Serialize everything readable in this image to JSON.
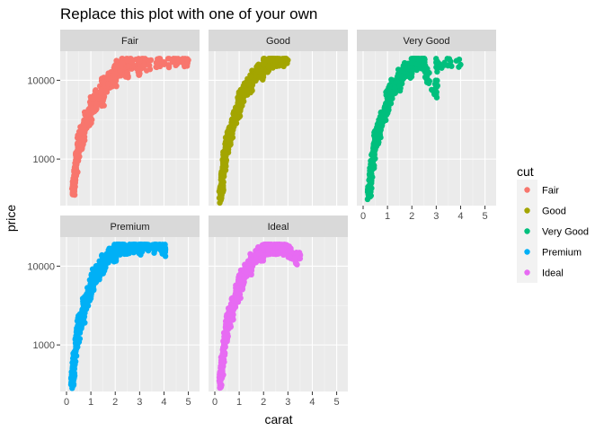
{
  "chart_data": {
    "type": "scatter",
    "title": "Replace this plot with one of your own",
    "xlabel": "carat",
    "ylabel": "price",
    "xlim": [
      0,
      5.2
    ],
    "x_ticks": [
      0,
      1,
      2,
      3,
      4,
      5
    ],
    "ylim": [
      300,
      20000
    ],
    "y_scale": "log10",
    "y_ticks": [
      1000,
      10000
    ],
    "grid": true,
    "legend": {
      "title": "cut",
      "placement": "right",
      "entries": [
        "Fair",
        "Good",
        "Very Good",
        "Premium",
        "Ideal"
      ]
    },
    "colors": {
      "Fair": "#F8766D",
      "Good": "#A3A500",
      "Very Good": "#00BF7D",
      "Premium": "#00B0F6",
      "Ideal": "#E76BF3"
    },
    "facets": [
      {
        "label": "Fair",
        "points": [
          [
            0.25,
            360
          ],
          [
            0.3,
            420
          ],
          [
            0.3,
            520
          ],
          [
            0.35,
            640
          ],
          [
            0.4,
            700
          ],
          [
            0.4,
            900
          ],
          [
            0.45,
            1100
          ],
          [
            0.5,
            1300
          ],
          [
            0.5,
            1600
          ],
          [
            0.55,
            1900
          ],
          [
            0.6,
            1500
          ],
          [
            0.6,
            2200
          ],
          [
            0.7,
            1800
          ],
          [
            0.7,
            2500
          ],
          [
            0.8,
            2700
          ],
          [
            0.8,
            3300
          ],
          [
            0.9,
            3000
          ],
          [
            0.9,
            3800
          ],
          [
            1.0,
            3200
          ],
          [
            1.0,
            4500
          ],
          [
            1.0,
            5200
          ],
          [
            1.1,
            4400
          ],
          [
            1.1,
            5800
          ],
          [
            1.2,
            5000
          ],
          [
            1.2,
            6400
          ],
          [
            1.3,
            6000
          ],
          [
            1.4,
            7000
          ],
          [
            1.5,
            5500
          ],
          [
            1.5,
            7800
          ],
          [
            1.5,
            9500
          ],
          [
            1.6,
            8500
          ],
          [
            1.7,
            9000
          ],
          [
            1.8,
            10500
          ],
          [
            2.0,
            9000
          ],
          [
            2.0,
            12000
          ],
          [
            2.0,
            15000
          ],
          [
            2.2,
            13000
          ],
          [
            2.3,
            16500
          ],
          [
            2.5,
            12500
          ],
          [
            2.5,
            17800
          ],
          [
            2.7,
            17000
          ],
          [
            3.0,
            14000
          ],
          [
            3.0,
            17500
          ],
          [
            3.4,
            15500
          ],
          [
            4.0,
            17000
          ],
          [
            4.5,
            18500
          ],
          [
            5.0,
            18000
          ]
        ]
      },
      {
        "label": "Good",
        "points": [
          [
            0.23,
            330
          ],
          [
            0.25,
            380
          ],
          [
            0.3,
            450
          ],
          [
            0.3,
            560
          ],
          [
            0.32,
            650
          ],
          [
            0.35,
            760
          ],
          [
            0.4,
            900
          ],
          [
            0.4,
            1100
          ],
          [
            0.45,
            1200
          ],
          [
            0.5,
            1400
          ],
          [
            0.5,
            1700
          ],
          [
            0.55,
            1900
          ],
          [
            0.6,
            1700
          ],
          [
            0.6,
            2300
          ],
          [
            0.7,
            2200
          ],
          [
            0.7,
            2900
          ],
          [
            0.75,
            3100
          ],
          [
            0.8,
            3300
          ],
          [
            0.9,
            3600
          ],
          [
            0.9,
            4300
          ],
          [
            1.0,
            4000
          ],
          [
            1.0,
            5000
          ],
          [
            1.0,
            6000
          ],
          [
            1.1,
            5500
          ],
          [
            1.1,
            7000
          ],
          [
            1.2,
            6500
          ],
          [
            1.2,
            8000
          ],
          [
            1.3,
            7500
          ],
          [
            1.4,
            9000
          ],
          [
            1.5,
            8000
          ],
          [
            1.5,
            11000
          ],
          [
            1.6,
            10000
          ],
          [
            1.7,
            12500
          ],
          [
            1.8,
            13000
          ],
          [
            2.0,
            12000
          ],
          [
            2.0,
            16000
          ],
          [
            2.1,
            17500
          ],
          [
            2.2,
            15000
          ],
          [
            2.3,
            18000
          ],
          [
            2.5,
            17000
          ],
          [
            2.6,
            18200
          ],
          [
            3.0,
            18000
          ]
        ]
      },
      {
        "label": "Very Good",
        "points": [
          [
            0.23,
            330
          ],
          [
            0.25,
            380
          ],
          [
            0.3,
            460
          ],
          [
            0.3,
            580
          ],
          [
            0.32,
            680
          ],
          [
            0.35,
            760
          ],
          [
            0.4,
            900
          ],
          [
            0.4,
            1100
          ],
          [
            0.45,
            1250
          ],
          [
            0.5,
            1500
          ],
          [
            0.5,
            1800
          ],
          [
            0.55,
            2000
          ],
          [
            0.6,
            1800
          ],
          [
            0.6,
            2400
          ],
          [
            0.7,
            2300
          ],
          [
            0.7,
            3000
          ],
          [
            0.75,
            3200
          ],
          [
            0.8,
            3400
          ],
          [
            0.9,
            3700
          ],
          [
            0.9,
            4500
          ],
          [
            1.0,
            4200
          ],
          [
            1.0,
            5200
          ],
          [
            1.0,
            6200
          ],
          [
            1.1,
            5800
          ],
          [
            1.1,
            7200
          ],
          [
            1.2,
            6800
          ],
          [
            1.2,
            8300
          ],
          [
            1.3,
            8000
          ],
          [
            1.4,
            9500
          ],
          [
            1.5,
            8500
          ],
          [
            1.5,
            11500
          ],
          [
            1.6,
            10500
          ],
          [
            1.7,
            13000
          ],
          [
            1.8,
            14000
          ],
          [
            2.0,
            13000
          ],
          [
            2.0,
            17000
          ],
          [
            2.1,
            18000
          ],
          [
            2.2,
            16000
          ],
          [
            2.3,
            18300
          ],
          [
            2.5,
            15500
          ],
          [
            2.5,
            17500
          ],
          [
            2.6,
            12000
          ],
          [
            3.0,
            6500
          ],
          [
            3.0,
            17000
          ],
          [
            4.0,
            15800
          ]
        ]
      },
      {
        "label": "Premium",
        "points": [
          [
            0.2,
            340
          ],
          [
            0.23,
            360
          ],
          [
            0.25,
            390
          ],
          [
            0.3,
            460
          ],
          [
            0.3,
            600
          ],
          [
            0.32,
            700
          ],
          [
            0.35,
            780
          ],
          [
            0.4,
            920
          ],
          [
            0.4,
            1150
          ],
          [
            0.45,
            1250
          ],
          [
            0.5,
            1500
          ],
          [
            0.5,
            1850
          ],
          [
            0.55,
            2050
          ],
          [
            0.6,
            1800
          ],
          [
            0.6,
            2500
          ],
          [
            0.7,
            2300
          ],
          [
            0.7,
            3100
          ],
          [
            0.75,
            3300
          ],
          [
            0.8,
            3500
          ],
          [
            0.9,
            3800
          ],
          [
            0.9,
            4700
          ],
          [
            1.0,
            4300
          ],
          [
            1.0,
            5300
          ],
          [
            1.0,
            6500
          ],
          [
            1.1,
            6000
          ],
          [
            1.1,
            7500
          ],
          [
            1.2,
            7000
          ],
          [
            1.2,
            8600
          ],
          [
            1.3,
            8200
          ],
          [
            1.4,
            9800
          ],
          [
            1.5,
            9000
          ],
          [
            1.5,
            12000
          ],
          [
            1.6,
            11000
          ],
          [
            1.7,
            13500
          ],
          [
            1.8,
            14500
          ],
          [
            2.0,
            13500
          ],
          [
            2.0,
            17500
          ],
          [
            2.1,
            18500
          ],
          [
            2.2,
            16500
          ],
          [
            2.3,
            18300
          ],
          [
            2.5,
            17000
          ],
          [
            2.7,
            18000
          ],
          [
            3.0,
            16000
          ],
          [
            3.0,
            18000
          ],
          [
            3.5,
            17500
          ],
          [
            3.7,
            18500
          ],
          [
            4.0,
            16800
          ],
          [
            4.0,
            15000
          ]
        ]
      },
      {
        "label": "Ideal",
        "points": [
          [
            0.2,
            330
          ],
          [
            0.23,
            350
          ],
          [
            0.25,
            380
          ],
          [
            0.3,
            460
          ],
          [
            0.3,
            590
          ],
          [
            0.32,
            690
          ],
          [
            0.35,
            770
          ],
          [
            0.4,
            920
          ],
          [
            0.4,
            1150
          ],
          [
            0.45,
            1250
          ],
          [
            0.5,
            1500
          ],
          [
            0.5,
            1850
          ],
          [
            0.55,
            2050
          ],
          [
            0.6,
            1850
          ],
          [
            0.6,
            2500
          ],
          [
            0.7,
            2350
          ],
          [
            0.7,
            3100
          ],
          [
            0.75,
            3300
          ],
          [
            0.8,
            3600
          ],
          [
            0.9,
            3900
          ],
          [
            0.9,
            4800
          ],
          [
            1.0,
            4400
          ],
          [
            1.0,
            5400
          ],
          [
            1.0,
            6600
          ],
          [
            1.1,
            6100
          ],
          [
            1.1,
            7600
          ],
          [
            1.2,
            7100
          ],
          [
            1.2,
            8700
          ],
          [
            1.3,
            8300
          ],
          [
            1.4,
            9900
          ],
          [
            1.5,
            9100
          ],
          [
            1.5,
            12100
          ],
          [
            1.6,
            11200
          ],
          [
            1.7,
            13600
          ],
          [
            1.8,
            14600
          ],
          [
            2.0,
            13600
          ],
          [
            2.0,
            17600
          ],
          [
            2.1,
            18400
          ],
          [
            2.2,
            16600
          ],
          [
            2.3,
            18300
          ],
          [
            2.5,
            17200
          ],
          [
            2.6,
            18000
          ],
          [
            2.8,
            16500
          ],
          [
            3.0,
            15500
          ],
          [
            3.3,
            12500
          ],
          [
            3.5,
            12500
          ]
        ]
      }
    ]
  }
}
